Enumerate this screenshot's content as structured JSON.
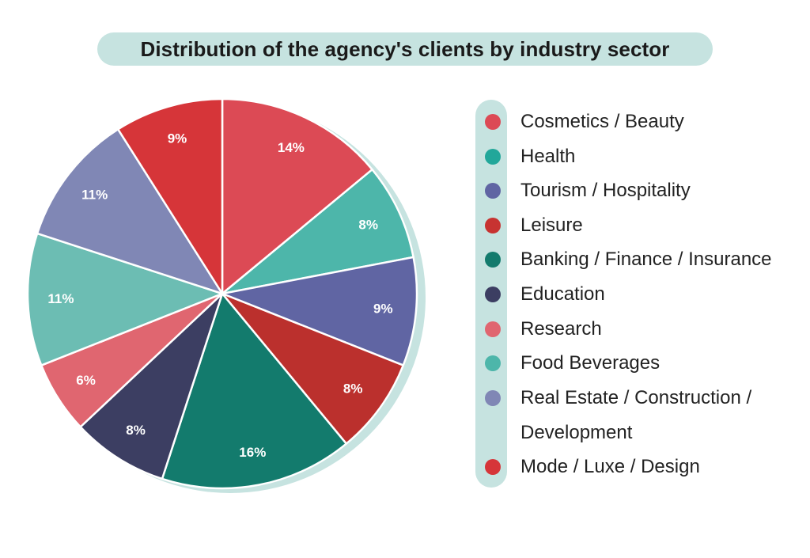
{
  "chart_data": {
    "type": "pie",
    "title": "Distribution of the agency's clients by industry sector",
    "slices": [
      {
        "label": "Cosmetics / Beauty",
        "value": 14,
        "display": "14%",
        "color": "#dc4a55"
      },
      {
        "label": "Health",
        "value": 8,
        "display": "8%",
        "color": "#4db6aa"
      },
      {
        "label": "Tourism / Hospitality",
        "value": 9,
        "display": "9%",
        "color": "#6065a3"
      },
      {
        "label": "Leisure",
        "value": 8,
        "display": "8%",
        "color": "#bb302d"
      },
      {
        "label": "Banking / Finance / Insurance",
        "value": 16,
        "display": "16%",
        "color": "#137b6d"
      },
      {
        "label": "Education",
        "value": 8,
        "display": "8%",
        "color": "#3c3e62"
      },
      {
        "label": "Research",
        "value": 6,
        "display": "6%",
        "color": "#e06670"
      },
      {
        "label": "Food Beverages",
        "value": 11,
        "display": "11%",
        "color": "#6cbdb3"
      },
      {
        "label": "Real Estate / Construction / Development",
        "value": 11,
        "display": "11%",
        "color": "#8087b5"
      },
      {
        "label": "Mode / Luxe / Design",
        "value": 9,
        "display": "9%",
        "color": "#d63539"
      }
    ],
    "legend_position": "right"
  },
  "legend": {
    "items": [
      {
        "lines": [
          "Cosmetics / Beauty"
        ],
        "color": "#dc4a55"
      },
      {
        "lines": [
          "Health"
        ],
        "color": "#22a79a"
      },
      {
        "lines": [
          "Tourism / Hospitality"
        ],
        "color": "#6065a3"
      },
      {
        "lines": [
          "Leisure"
        ],
        "color": "#c73331"
      },
      {
        "lines": [
          "Banking / Finance / Insurance"
        ],
        "color": "#137b6d"
      },
      {
        "lines": [
          "Education"
        ],
        "color": "#3c3e62"
      },
      {
        "lines": [
          "Research"
        ],
        "color": "#e06670"
      },
      {
        "lines": [
          "Food Beverages"
        ],
        "color": "#4db6aa"
      },
      {
        "lines": [
          "Real Estate / Construction /",
          "Development"
        ],
        "color": "#8087b5"
      },
      {
        "lines": [
          "Mode / Luxe / Design"
        ],
        "color": "#d63539"
      }
    ]
  },
  "colors": {
    "accent_teal_light": "#c6e3e0",
    "slice_border": "#ffffff",
    "label_text": "#ffffff"
  }
}
